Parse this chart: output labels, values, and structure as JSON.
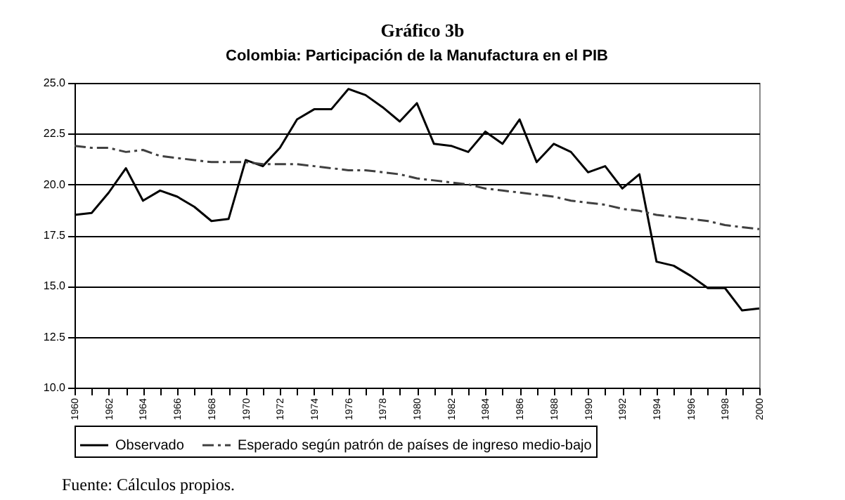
{
  "chart_data": {
    "type": "line",
    "title": "Gráfico 3b",
    "subtitle": "Colombia: Participación de la Manufactura en el PIB",
    "categories": [
      "1960",
      null,
      "1962",
      null,
      "1964",
      null,
      "1966",
      null,
      "1968",
      null,
      "1970",
      null,
      "1972",
      null,
      "1974",
      null,
      "1976",
      null,
      "1978",
      null,
      "1980",
      null,
      "1982",
      null,
      "1984",
      null,
      "1986",
      null,
      "1988",
      null,
      "1990",
      null,
      "1992",
      null,
      "1994",
      null,
      "1996",
      null,
      "1998",
      null,
      "2000"
    ],
    "series": [
      {
        "name": "Observado",
        "color": "#000000",
        "line_style": "solid",
        "values": [
          18.5,
          18.6,
          19.6,
          20.8,
          19.2,
          19.7,
          19.4,
          18.9,
          18.2,
          18.3,
          21.2,
          20.9,
          21.8,
          23.2,
          23.7,
          23.7,
          24.7,
          24.4,
          23.8,
          23.1,
          24.0,
          22.0,
          21.9,
          21.6,
          22.6,
          22.0,
          23.2,
          21.1,
          22.0,
          21.6,
          20.6,
          20.9,
          19.8,
          20.5,
          16.2,
          16.0,
          15.5,
          14.9,
          14.9,
          13.8,
          13.9
        ]
      },
      {
        "name": "Esperado según patrón de países de ingreso medio-bajo",
        "color": "#404040",
        "line_style": "dashed",
        "values": [
          21.9,
          21.8,
          21.8,
          21.6,
          21.7,
          21.4,
          21.3,
          21.2,
          21.1,
          21.1,
          21.1,
          21.0,
          21.0,
          21.0,
          20.9,
          20.8,
          20.7,
          20.7,
          20.6,
          20.5,
          20.3,
          20.2,
          20.1,
          20.0,
          19.8,
          19.7,
          19.6,
          19.5,
          19.4,
          19.2,
          19.1,
          19.0,
          18.8,
          18.7,
          18.5,
          18.4,
          18.3,
          18.2,
          18.0,
          17.9,
          17.8
        ]
      }
    ],
    "ylim": [
      10,
      25
    ],
    "yticks": [
      {
        "value": 10,
        "label": "10.0"
      },
      {
        "value": 12.5,
        "label": "12.5"
      },
      {
        "value": 15,
        "label": "15.0"
      },
      {
        "value": 17.5,
        "label": "17.5"
      },
      {
        "value": 20,
        "label": "20.0"
      },
      {
        "value": 22.5,
        "label": "22.5"
      },
      {
        "value": 25,
        "label": "25.0"
      }
    ],
    "grid": "y",
    "legend": "bottom",
    "marker": "none",
    "annotations": [
      "Fuente: Cálculos propios."
    ]
  }
}
